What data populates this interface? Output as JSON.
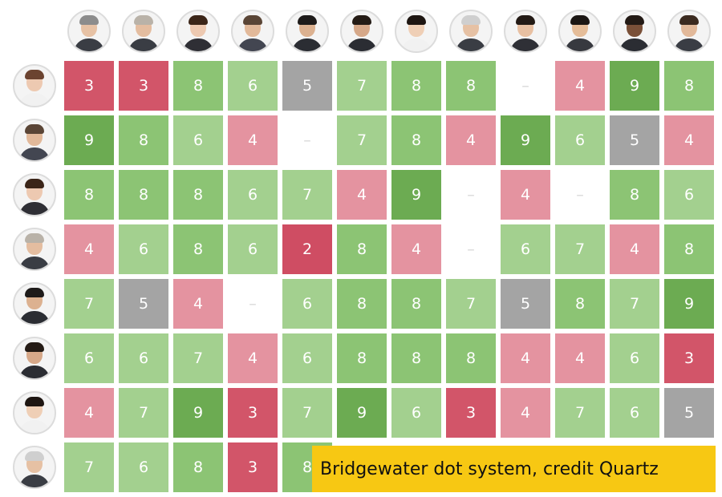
{
  "caption": "Bridgewater dot system, credit Quartz",
  "colors": {
    "score_9": "#6cab52",
    "score_8": "#8cc474",
    "score_7": "#a3d08f",
    "score_6": "#a3d08f",
    "score_5": "#a4a4a4",
    "score_4": "#e493a0",
    "score_3": "#d25569",
    "score_2": "#cf4d63",
    "empty": "#ffffff"
  },
  "column_avatars": [
    {
      "name": "person-avatar-icon",
      "hair": "#8c8c8c",
      "skin": "#e7c2a5",
      "shirt": "#3a3d44"
    },
    {
      "name": "person-avatar-icon",
      "hair": "#b9b2a8",
      "skin": "#e4bda0",
      "shirt": "#3a3d44"
    },
    {
      "name": "person-avatar-icon",
      "hair": "#3b2518",
      "skin": "#edc9b1",
      "shirt": "#2f2f35"
    },
    {
      "name": "person-avatar-icon",
      "hair": "#5a4536",
      "skin": "#e2b99a",
      "shirt": "#434651"
    },
    {
      "name": "person-avatar-icon",
      "hair": "#1e1b1a",
      "skin": "#dcb190",
      "shirt": "#2b2d33"
    },
    {
      "name": "person-avatar-icon",
      "hair": "#241b15",
      "skin": "#d6a889",
      "shirt": "#2b2d33"
    },
    {
      "name": "person-avatar-icon",
      "hair": "#1e1612",
      "skin": "#efcfb6",
      "shirt": "#f1f1f1"
    },
    {
      "name": "person-avatar-icon",
      "hair": "#cfcfcf",
      "skin": "#e6c1a4",
      "shirt": "#3a3d44"
    },
    {
      "name": "person-avatar-icon",
      "hair": "#231a15",
      "skin": "#e8c0a2",
      "shirt": "#2f3036"
    },
    {
      "name": "person-avatar-icon",
      "hair": "#1c1714",
      "skin": "#e5bd99",
      "shirt": "#37393f"
    },
    {
      "name": "person-avatar-icon",
      "hair": "#231a15",
      "skin": "#7a5038",
      "shirt": "#2b2d33"
    },
    {
      "name": "person-avatar-icon",
      "hair": "#3b2a1f",
      "skin": "#e2b99a",
      "shirt": "#3a3d44"
    }
  ],
  "row_avatars": [
    {
      "name": "person-avatar-icon",
      "hair": "#6b4330",
      "skin": "#edc9b1",
      "shirt": "#f1f1f1"
    },
    {
      "name": "person-avatar-icon",
      "hair": "#5a4536",
      "skin": "#e2b99a",
      "shirt": "#434651"
    },
    {
      "name": "person-avatar-icon",
      "hair": "#3b2518",
      "skin": "#edc9b1",
      "shirt": "#2f2f35"
    },
    {
      "name": "person-avatar-icon",
      "hair": "#b9b2a8",
      "skin": "#e4bda0",
      "shirt": "#3a3d44"
    },
    {
      "name": "person-avatar-icon",
      "hair": "#1e1b1a",
      "skin": "#dcb190",
      "shirt": "#2b2d33"
    },
    {
      "name": "person-avatar-icon",
      "hair": "#241b15",
      "skin": "#d6a889",
      "shirt": "#2b2d33"
    },
    {
      "name": "person-avatar-icon",
      "hair": "#1e1612",
      "skin": "#efcfb6",
      "shirt": "#f1f1f1"
    },
    {
      "name": "person-avatar-icon",
      "hair": "#cfcfcf",
      "skin": "#e6c1a4",
      "shirt": "#3a3d44"
    }
  ],
  "chart_data": {
    "type": "heatmap",
    "title": "",
    "empty_marker": "–",
    "rows": [
      [
        3,
        3,
        8,
        6,
        5,
        7,
        8,
        8,
        null,
        4,
        9,
        8
      ],
      [
        9,
        8,
        6,
        4,
        null,
        7,
        8,
        4,
        9,
        6,
        5,
        4
      ],
      [
        8,
        8,
        8,
        6,
        7,
        4,
        9,
        null,
        4,
        null,
        8,
        6
      ],
      [
        4,
        6,
        8,
        6,
        2,
        8,
        4,
        null,
        6,
        7,
        4,
        8
      ],
      [
        7,
        5,
        4,
        null,
        6,
        8,
        8,
        7,
        5,
        8,
        7,
        9
      ],
      [
        6,
        6,
        7,
        4,
        6,
        8,
        8,
        8,
        4,
        4,
        6,
        3
      ],
      [
        4,
        7,
        9,
        3,
        7,
        9,
        6,
        3,
        4,
        7,
        6,
        5
      ],
      [
        7,
        6,
        8,
        3,
        8,
        null,
        null,
        null,
        null,
        null,
        null,
        null
      ]
    ]
  }
}
